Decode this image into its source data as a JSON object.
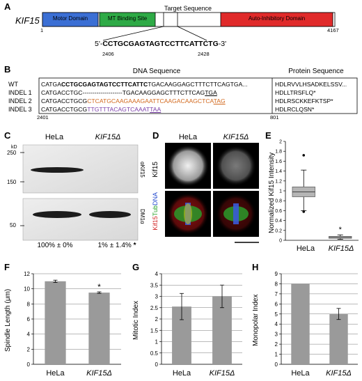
{
  "panels": {
    "A": {
      "letter": "A",
      "gene": "KIF15",
      "domains": [
        {
          "name": "Motor Domain",
          "color": "#3b6fd4"
        },
        {
          "name": "MT Binding Site",
          "color": "#2eaa46"
        },
        {
          "name": "Auto-Inhibitory Domain",
          "color": "#e02a2a"
        }
      ],
      "target_label": "Target Sequence",
      "start": "1",
      "end": "4167",
      "seq_prefix": "5'-",
      "seq": "CCTGCGAGTAGTCCTTCATTCTG",
      "seq_suffix": "-3'",
      "pos_start": "2406",
      "pos_end": "2428"
    },
    "B": {
      "letter": "B",
      "dna_header": "DNA Sequence",
      "protein_header": "Protein Sequence",
      "rows": [
        {
          "label": "WT",
          "p1": "CATGA",
          "p2": "CCTGCGAGTAGTCCTTCATTC",
          "p3": "TGACAAGGAGCTTTCTTCAGTGA...",
          "protein": "HDLRVVLHSADKELSSV..."
        },
        {
          "label": "INDEL 1",
          "p1": "CATGACCTGC",
          "p2": "--------------------",
          "p3": "TGACAAGGAGCTTTCTTCAG",
          "p4": "TGA",
          "protein": "HDLLTRSFLQ*"
        },
        {
          "label": "INDEL 2",
          "p1": "CATGACCTGCG",
          "p2": "CTCATGCAAGAAAGAATTCAAGACAAGCTCA",
          "p4": "TAG",
          "protein": "HDLRSCKKEFKTSP*"
        },
        {
          "label": "INDEL 3",
          "p1": "CATGACCTGCG",
          "p2": "TTGTTTACAGTCAAAT",
          "p4": "TAA",
          "protein": "HDLRCLQSN*"
        }
      ],
      "dna_pos": "2401",
      "protein_pos": "801"
    },
    "C": {
      "letter": "C",
      "kd": "kD",
      "lanes": [
        "HeLa",
        "KIF15Δ"
      ],
      "markers_top": [
        "250",
        "150"
      ],
      "markers_bottom": [
        "50"
      ],
      "ab_top": "αKif15",
      "ab_bottom": "DM1α",
      "quant": [
        "100% ± 0%",
        "1% ± 1.4%"
      ],
      "star": "*"
    },
    "D": {
      "letter": "D",
      "cols": [
        "HeLa",
        "KIF15Δ"
      ],
      "row1_label": "Kif15",
      "row2_label_parts": [
        "Kif15",
        "Tub",
        "DNA"
      ]
    },
    "E": {
      "letter": "E",
      "ylabel": "Normalized Kif15 Intensity",
      "star": "*"
    },
    "F": {
      "letter": "F",
      "ylabel": "Spindle Length (μm)",
      "star": "*"
    },
    "G": {
      "letter": "G",
      "ylabel": "Mitotic Index"
    },
    "H": {
      "letter": "H",
      "ylabel": "Monopolar Index"
    }
  },
  "chart_data": [
    {
      "id": "E",
      "type": "box",
      "categories": [
        "HeLa",
        "KIF15Δ"
      ],
      "boxes": [
        {
          "min": 0.6,
          "q1": 0.88,
          "median": 0.98,
          "q3": 1.08,
          "max": 1.42,
          "outliers": [
            1.72,
            0.58
          ]
        },
        {
          "min": 0.02,
          "q1": 0.04,
          "median": 0.06,
          "q3": 0.08,
          "max": 0.11,
          "outliers": []
        }
      ],
      "ylim": [
        0,
        2
      ],
      "yticks": [
        0,
        0.2,
        0.4,
        0.6,
        0.8,
        1,
        1.2,
        1.4,
        1.6,
        1.8,
        2
      ],
      "ylabel": "Normalized Kif15 Intensity"
    },
    {
      "id": "F",
      "type": "bar",
      "categories": [
        "HeLa",
        "KIF15Δ"
      ],
      "values": [
        11.0,
        9.5
      ],
      "errors": [
        0.15,
        0.1
      ],
      "ylim": [
        0,
        12
      ],
      "yticks": [
        0,
        2,
        4,
        6,
        8,
        10,
        12
      ],
      "ylabel": "Spindle Length (μm)"
    },
    {
      "id": "G",
      "type": "bar",
      "categories": [
        "HeLa",
        "KIF15Δ"
      ],
      "values": [
        2.55,
        3.0
      ],
      "errors": [
        0.58,
        0.5
      ],
      "ylim": [
        0,
        4
      ],
      "yticks": [
        0,
        0.5,
        1,
        1.5,
        2,
        2.5,
        3,
        3.5,
        4
      ],
      "ylabel": "Mitotic Index"
    },
    {
      "id": "H",
      "type": "bar",
      "categories": [
        "HeLa",
        "KIF15Δ"
      ],
      "values": [
        8.0,
        5.0
      ],
      "errors": [
        0.0,
        0.55
      ],
      "ylim": [
        0,
        9
      ],
      "yticks": [
        0,
        1,
        2,
        3,
        4,
        5,
        6,
        7,
        8,
        9
      ],
      "ylabel": "Monopolar Index"
    }
  ]
}
